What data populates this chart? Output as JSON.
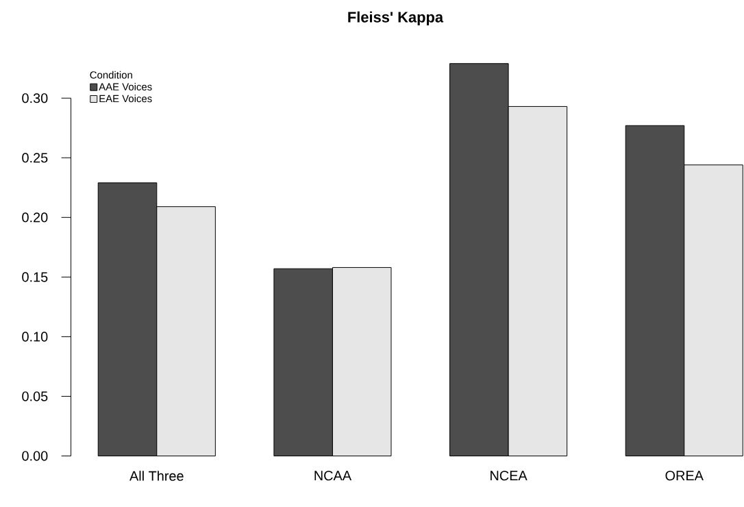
{
  "chart_data": {
    "type": "bar",
    "title": "Fleiss' Kappa",
    "categories": [
      "All Three",
      "NCAA",
      "NCEA",
      "OREA"
    ],
    "series": [
      {
        "name": "AAE Voices",
        "color": "#4d4d4d",
        "values": [
          0.229,
          0.157,
          0.329,
          0.277
        ]
      },
      {
        "name": "EAE Voices",
        "color": "#e6e6e6",
        "values": [
          0.209,
          0.158,
          0.293,
          0.244
        ]
      }
    ],
    "legend_title": "Condition",
    "legend": "top left",
    "grid": false,
    "ylim": [
      0,
      0.33
    ],
    "yticks": [
      {
        "value": 0,
        "label": "0.00"
      },
      {
        "value": 0.05,
        "label": "0.05"
      },
      {
        "value": 0.1,
        "label": "0.10"
      },
      {
        "value": 0.15,
        "label": "0.15"
      },
      {
        "value": 0.2,
        "label": "0.20"
      },
      {
        "value": 0.25,
        "label": "0.25"
      },
      {
        "value": 0.3,
        "label": "0.30"
      }
    ]
  }
}
